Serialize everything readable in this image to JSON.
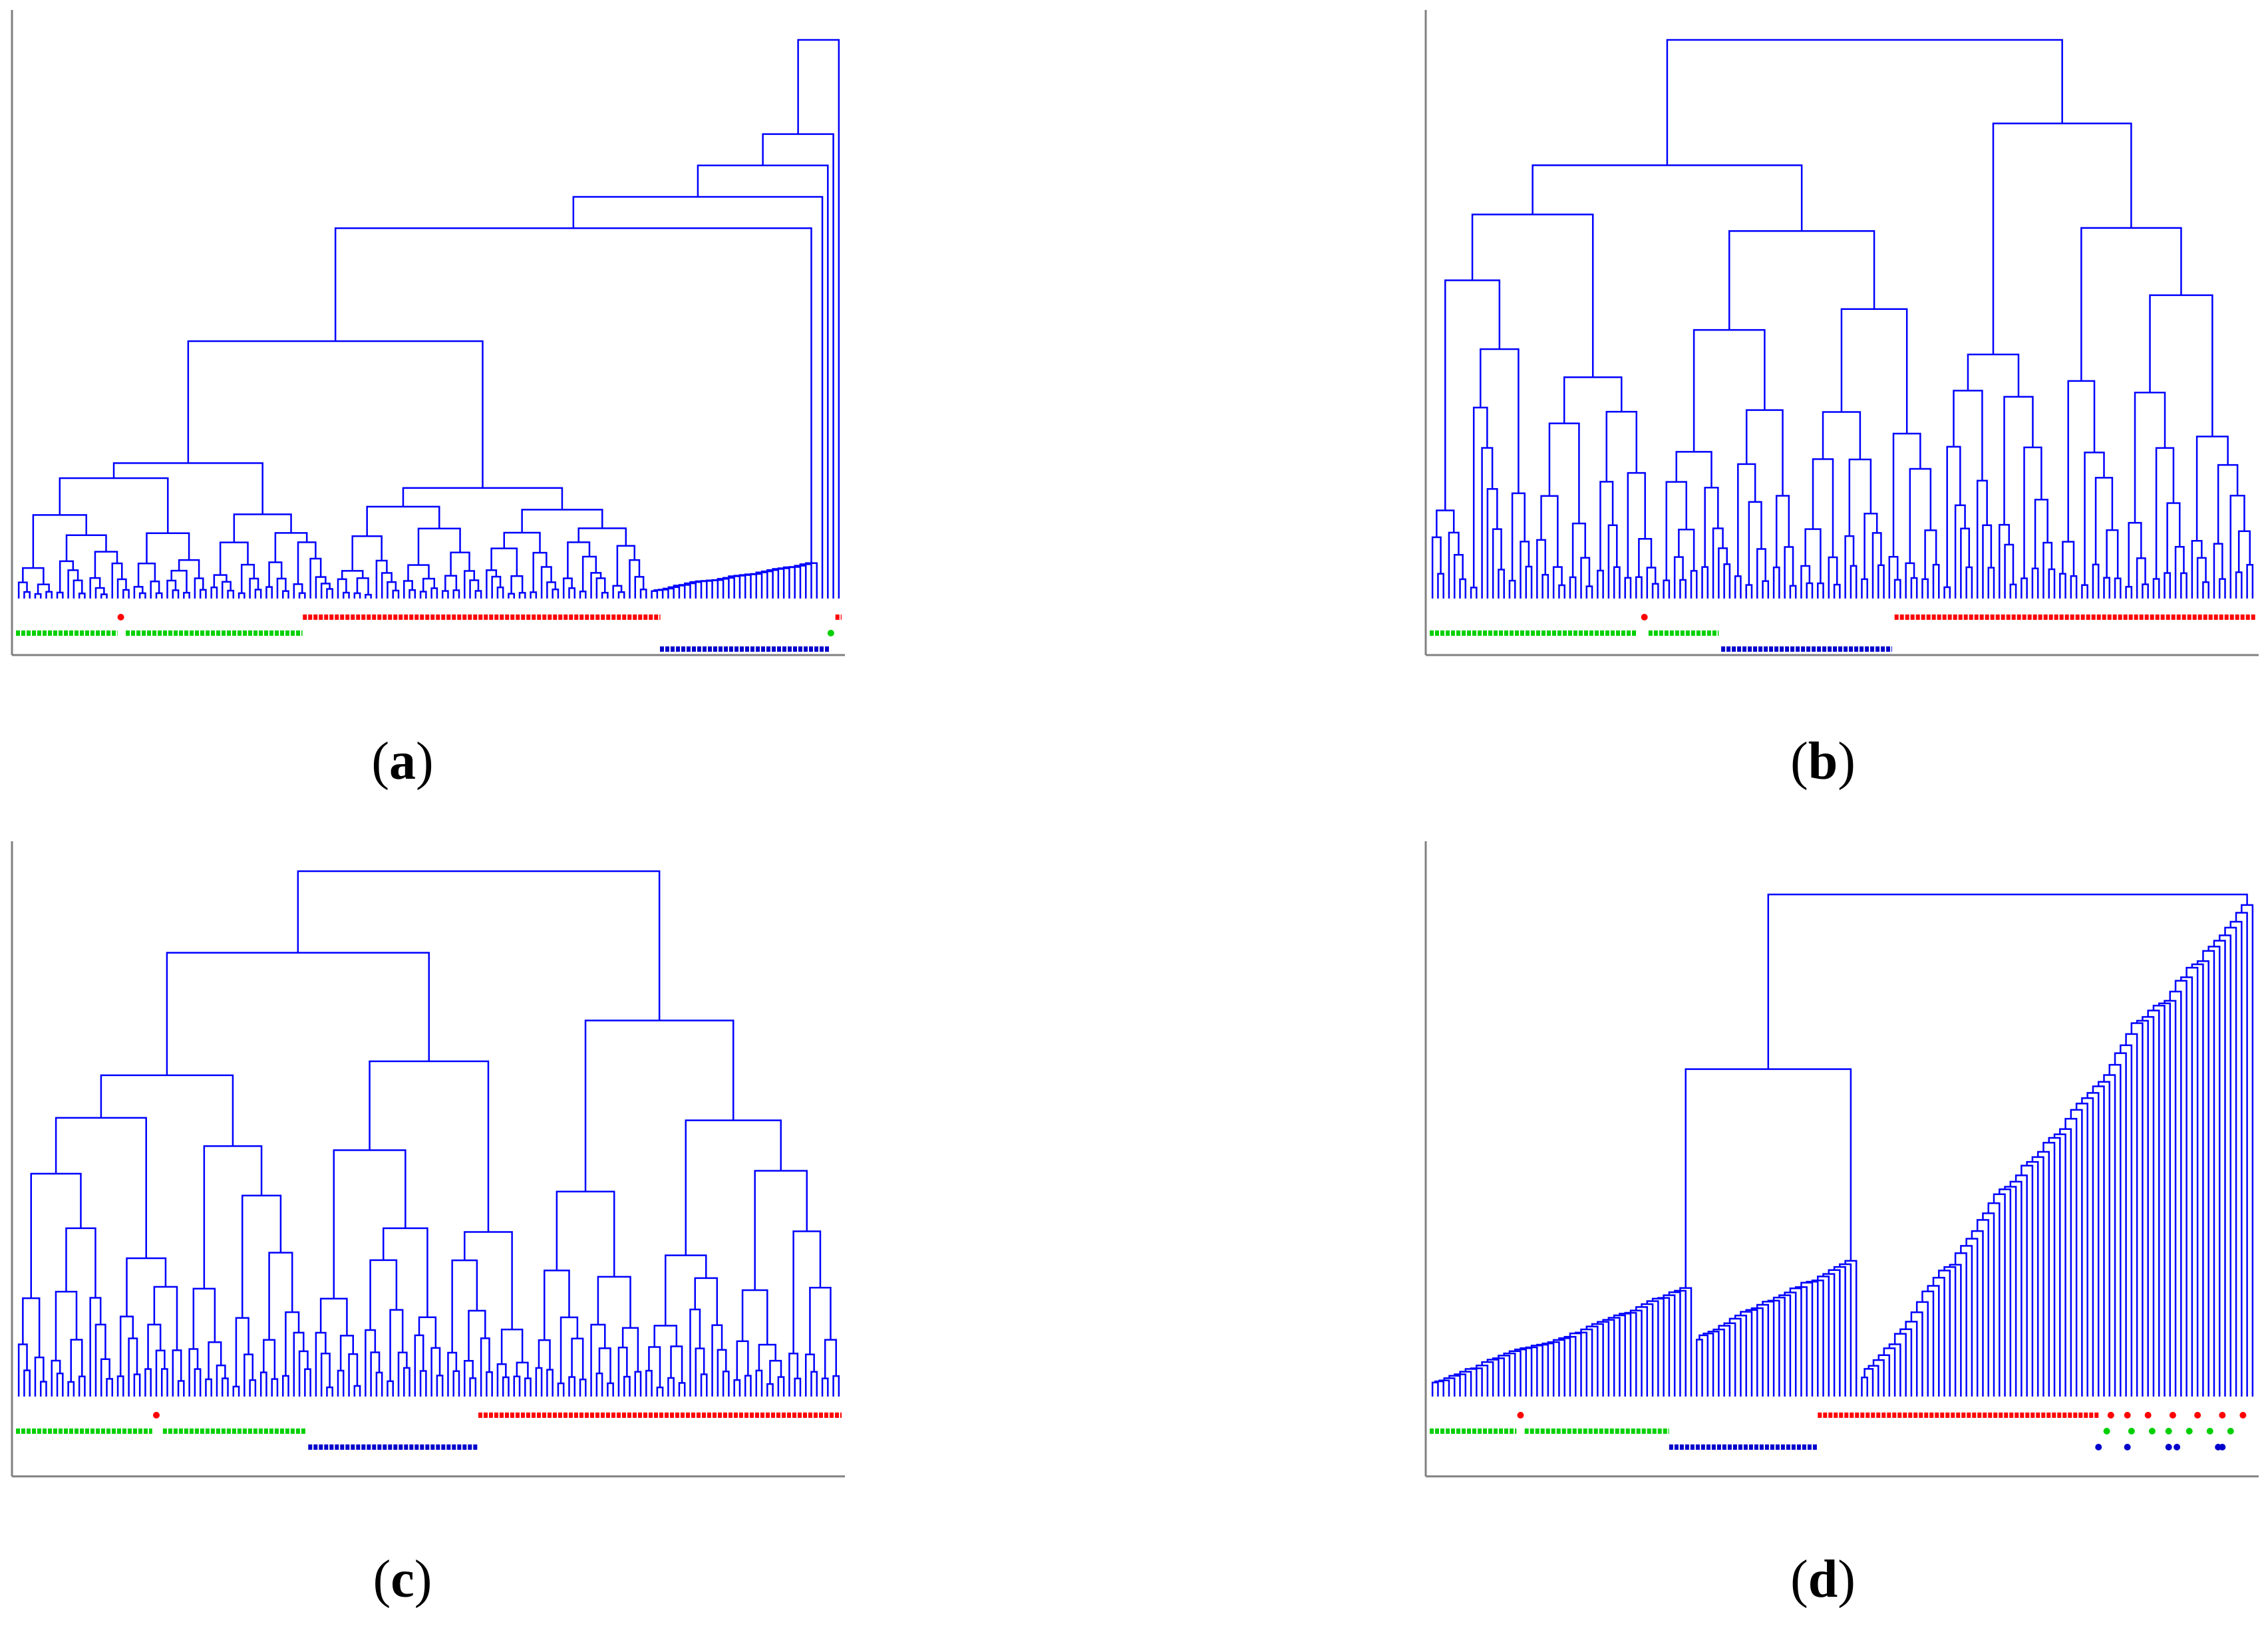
{
  "colors": {
    "tree": "#0000ff",
    "class_green": "#00d000",
    "class_red": "#ff0000",
    "class_blue": "#0000cc",
    "axis": "#808080"
  },
  "chart_data": [
    {
      "type": "dendrogram",
      "panel_label": "a",
      "linkage_style": "chaining",
      "leaf_count": 150,
      "class_strips": [
        {
          "class": "red",
          "ranges": [
            [
              0.0,
              0.0
            ]
          ],
          "singletons": [
            0.127
          ],
          "extra_ranges": [
            [
              0.3475,
              0.7805
            ],
            [
              0.9925,
              1.0
            ]
          ]
        },
        {
          "class": "green",
          "ranges": [
            [
              0.0,
              0.123
            ],
            [
              0.133,
              0.347
            ]
          ],
          "singletons": [
            0.987
          ]
        },
        {
          "class": "blue",
          "ranges": [
            [
              0.78,
              0.985
            ]
          ],
          "singletons": []
        }
      ],
      "title": "",
      "xlabel": "",
      "ylabel": ""
    },
    {
      "type": "dendrogram",
      "panel_label": "b",
      "linkage_style": "balanced",
      "leaf_count": 150,
      "class_strips": [
        {
          "class": "red",
          "ranges": [
            [
              0.563,
              1.0
            ]
          ],
          "singletons": [
            0.26
          ]
        },
        {
          "class": "green",
          "ranges": [
            [
              0.0,
              0.25
            ],
            [
              0.265,
              0.35
            ]
          ],
          "singletons": []
        },
        {
          "class": "blue",
          "ranges": [
            [
              0.353,
              0.56
            ]
          ],
          "singletons": []
        }
      ],
      "title": "",
      "xlabel": "",
      "ylabel": ""
    },
    {
      "type": "dendrogram",
      "panel_label": "c",
      "linkage_style": "balanced",
      "leaf_count": 150,
      "class_strips": [
        {
          "class": "red",
          "ranges": [
            [
              0.56,
              1.0
            ]
          ],
          "singletons": [
            0.17
          ]
        },
        {
          "class": "green",
          "ranges": [
            [
              0.0,
              0.165
            ],
            [
              0.178,
              0.352
            ]
          ],
          "singletons": []
        },
        {
          "class": "blue",
          "ranges": [
            [
              0.354,
              0.56
            ]
          ],
          "singletons": []
        }
      ],
      "title": "",
      "xlabel": "",
      "ylabel": ""
    },
    {
      "type": "dendrogram",
      "panel_label": "d",
      "linkage_style": "single-linkage chaining",
      "leaf_count": 150,
      "class_strips": [
        {
          "class": "red",
          "ranges": [
            [
              0.47,
              0.81
            ]
          ],
          "singletons": [
            0.11,
            0.825,
            0.845,
            0.87,
            0.9,
            0.93,
            0.96,
            0.985
          ]
        },
        {
          "class": "green",
          "ranges": [
            [
              0.0,
              0.105
            ],
            [
              0.115,
              0.29
            ]
          ],
          "singletons": [
            0.82,
            0.85,
            0.875,
            0.895,
            0.92,
            0.945,
            0.97
          ]
        },
        {
          "class": "blue",
          "ranges": [
            [
              0.29,
              0.47
            ]
          ],
          "singletons": [
            0.81,
            0.845,
            0.895,
            0.905,
            0.955,
            0.96
          ]
        }
      ],
      "title": "",
      "xlabel": "",
      "ylabel": ""
    }
  ],
  "captions": [
    "a",
    "b",
    "c",
    "d"
  ]
}
